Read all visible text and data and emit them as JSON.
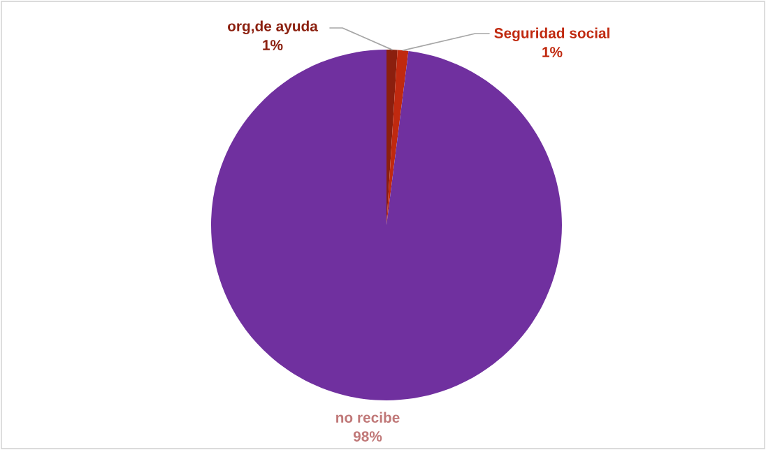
{
  "chart_data": {
    "type": "pie",
    "categories": [
      "org,de ayuda",
      "Seguridad social",
      "no recibe"
    ],
    "values": [
      1,
      1,
      98
    ],
    "colors": [
      "#8b1f0e",
      "#c0290f",
      "#70309f"
    ],
    "value_labels": [
      "1%",
      "1%",
      "98%"
    ]
  }
}
